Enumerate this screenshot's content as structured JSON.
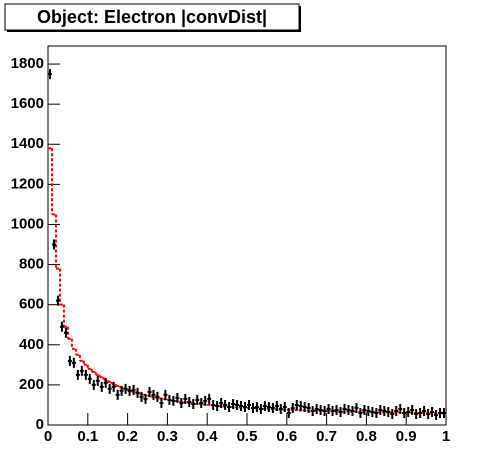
{
  "chart_data": {
    "type": "histogram",
    "title": "Object: Electron |convDist|",
    "bins": [
      0,
      0.01,
      0.02,
      0.03,
      0.04,
      0.05,
      0.06,
      0.07,
      0.08,
      0.09,
      0.1,
      0.11,
      0.12,
      0.13,
      0.14,
      0.15,
      0.16,
      0.17,
      0.18,
      0.19,
      0.2,
      0.21,
      0.22,
      0.23,
      0.24,
      0.25,
      0.26,
      0.27,
      0.28,
      0.29,
      0.3,
      0.31,
      0.32,
      0.33,
      0.34,
      0.35,
      0.36,
      0.37,
      0.38,
      0.39,
      0.4,
      0.41,
      0.42,
      0.43,
      0.44,
      0.45,
      0.46,
      0.47,
      0.48,
      0.49,
      0.5,
      0.51,
      0.52,
      0.53,
      0.54,
      0.55,
      0.56,
      0.57,
      0.58,
      0.59,
      0.6,
      0.61,
      0.62,
      0.63,
      0.64,
      0.65,
      0.66,
      0.67,
      0.68,
      0.69,
      0.7,
      0.71,
      0.72,
      0.73,
      0.74,
      0.75,
      0.76,
      0.77,
      0.78,
      0.79,
      0.8,
      0.81,
      0.82,
      0.83,
      0.84,
      0.85,
      0.86,
      0.87,
      0.88,
      0.89,
      0.9,
      0.91,
      0.92,
      0.93,
      0.94,
      0.95,
      0.96,
      0.97,
      0.98,
      0.99,
      1
    ],
    "series": [
      {
        "color": "#ff0000",
        "style": "step",
        "values": [
          1380,
          1050,
          780,
          600,
          490,
          430,
          380,
          350,
          320,
          300,
          280,
          265,
          250,
          238,
          225,
          215,
          205,
          195,
          188,
          180,
          173,
          167,
          161,
          155,
          150,
          145,
          140,
          136,
          132,
          128,
          125,
          122,
          119,
          116,
          113,
          111,
          108,
          106,
          104,
          102,
          100,
          98,
          96,
          94,
          92,
          91,
          90,
          88,
          87,
          86,
          85,
          84,
          83,
          82,
          81,
          80,
          79,
          78,
          77,
          76,
          76,
          75,
          74,
          73,
          73,
          72,
          71,
          71,
          70,
          70,
          69,
          69,
          68,
          68,
          67,
          67,
          66,
          66,
          65,
          65,
          64,
          64,
          64,
          63,
          63,
          63,
          62,
          62,
          62,
          61,
          61,
          61,
          60,
          60,
          60,
          60,
          59,
          59,
          59,
          58
        ]
      },
      {
        "color": "#000000",
        "style": "points",
        "values": [
          1750,
          900,
          620,
          490,
          460,
          320,
          310,
          250,
          270,
          250,
          230,
          200,
          220,
          190,
          210,
          180,
          190,
          150,
          170,
          180,
          170,
          175,
          160,
          140,
          130,
          165,
          150,
          140,
          110,
          150,
          125,
          120,
          135,
          110,
          130,
          115,
          105,
          125,
          110,
          120,
          130,
          100,
          95,
          110,
          100,
          90,
          105,
          100,
          95,
          90,
          100,
          85,
          90,
          80,
          95,
          90,
          85,
          95,
          80,
          90,
          60,
          85,
          100,
          95,
          90,
          85,
          70,
          80,
          75,
          70,
          80,
          70,
          75,
          65,
          80,
          75,
          70,
          85,
          60,
          75,
          70,
          65,
          60,
          75,
          70,
          65,
          55,
          70,
          80,
          60,
          65,
          75,
          55,
          60,
          70,
          55,
          65,
          50,
          60,
          60
        ]
      }
    ],
    "xlim": [
      0,
      1
    ],
    "xticks": [
      0,
      0.1,
      0.2,
      0.3,
      0.4,
      0.5,
      0.6,
      0.7,
      0.8,
      0.9,
      1
    ],
    "ylim": [
      0,
      1890
    ],
    "yticks": [
      0,
      200,
      400,
      600,
      800,
      1000,
      1200,
      1400,
      1600,
      1800
    ]
  }
}
